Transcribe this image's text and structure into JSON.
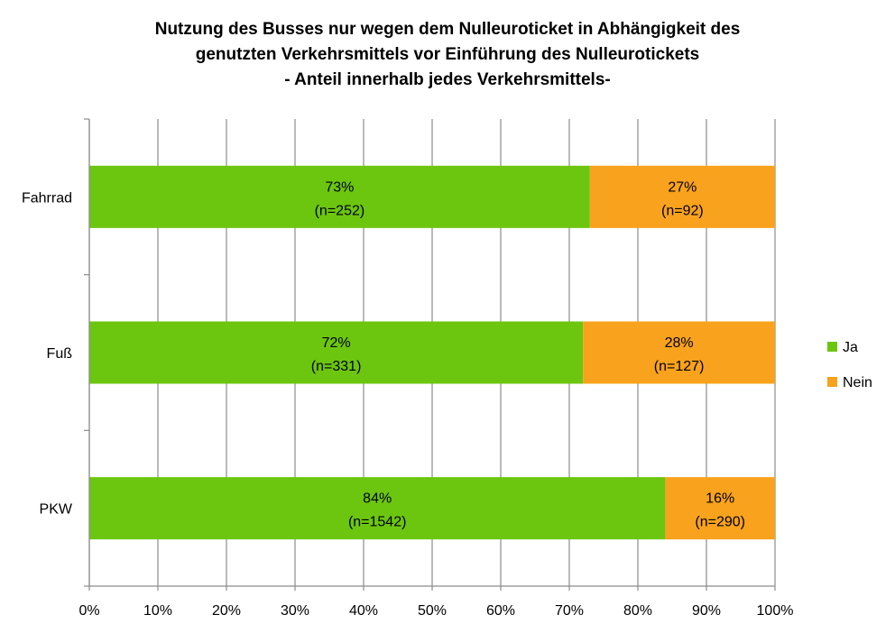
{
  "chart_data": {
    "type": "bar",
    "orientation": "horizontal",
    "stacked": true,
    "title_lines": [
      "Nutzung des Busses nur wegen dem Nulleuroticket in Abhängigkeit des",
      "genutzten Verkehrsmittels vor Einführung des Nulleurotickets",
      "- Anteil innerhalb jedes Verkehrsmittels-"
    ],
    "categories": [
      "Fahrrad",
      "Fuß",
      "PKW"
    ],
    "series": [
      {
        "name": "Ja",
        "color": "#6cc60f",
        "values": [
          73,
          72,
          84
        ],
        "labels": [
          [
            "73%",
            "(n=252)"
          ],
          [
            "72%",
            "(n=331)"
          ],
          [
            "84%",
            "(n=1542)"
          ]
        ]
      },
      {
        "name": "Nein",
        "color": "#f9a21d",
        "values": [
          27,
          28,
          16
        ],
        "labels": [
          [
            "27%",
            "(n=92)"
          ],
          [
            "28%",
            "(n=127)"
          ],
          [
            "16%",
            "(n=290)"
          ]
        ]
      }
    ],
    "xlim": [
      0,
      100
    ],
    "xticks": [
      0,
      10,
      20,
      30,
      40,
      50,
      60,
      70,
      80,
      90,
      100
    ],
    "xtick_labels": [
      "0%",
      "10%",
      "20%",
      "30%",
      "40%",
      "50%",
      "60%",
      "70%",
      "80%",
      "90%",
      "100%"
    ],
    "grid": "vertical",
    "legend_position": "right"
  }
}
